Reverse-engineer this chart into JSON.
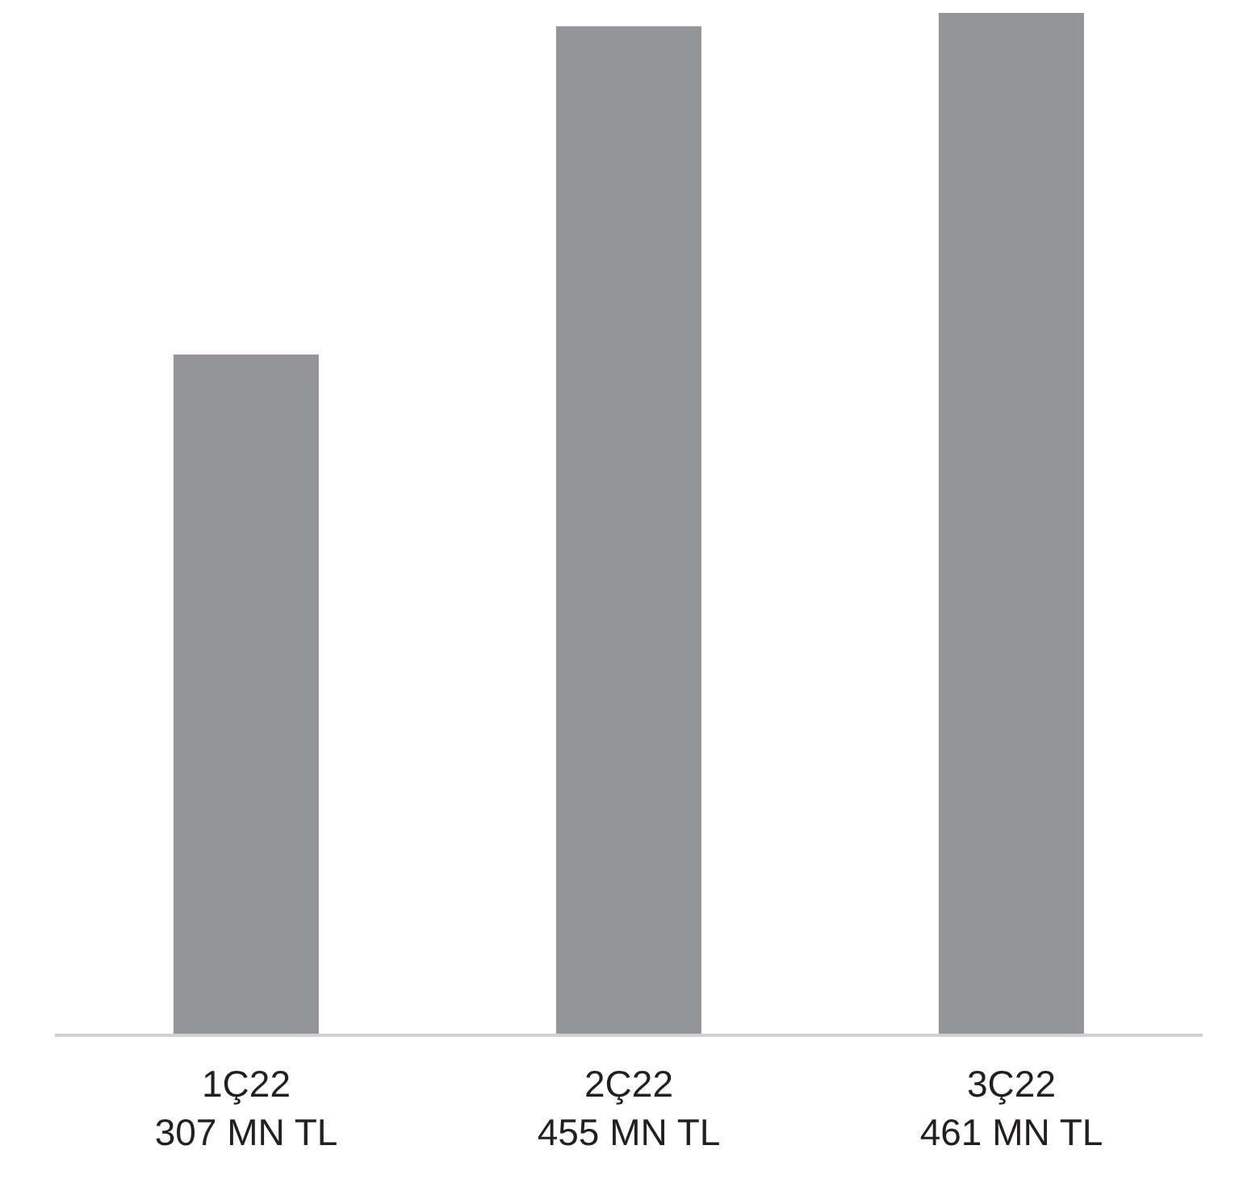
{
  "chart_data": {
    "type": "bar",
    "categories": [
      "1Ç22",
      "2Ç22",
      "3Ç22"
    ],
    "values": [
      307,
      455,
      461
    ],
    "value_labels": [
      "307 MN TL",
      "455 MN TL",
      "461 MN TL"
    ],
    "color": "#939598",
    "grid": false,
    "legend": false
  }
}
